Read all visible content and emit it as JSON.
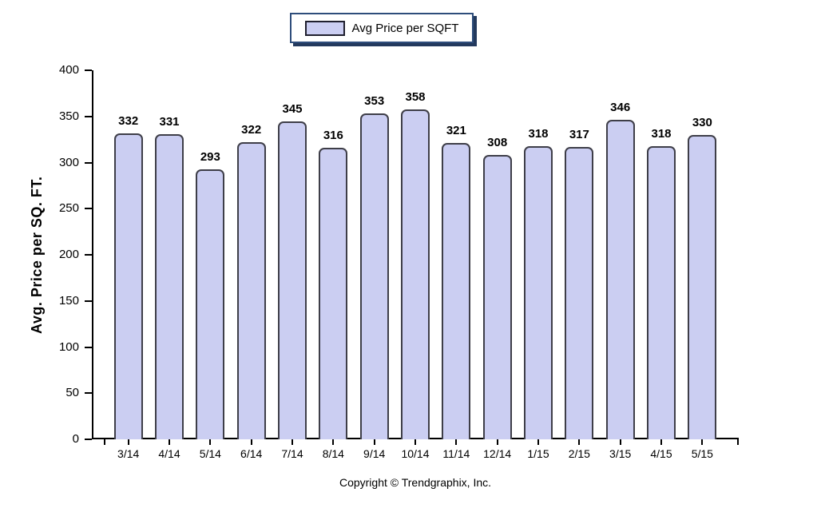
{
  "legend": {
    "label": "Avg Price per SQFT"
  },
  "footer": {
    "copyright": "Copyright © Trendgraphix, Inc."
  },
  "colors": {
    "bar_fill": "#cbcef2",
    "bar_border": "#3e3e48",
    "axis": "#000000",
    "legend_border": "#2e4d7b",
    "legend_shadow": "#23395d",
    "swatch_border": "#1f1f2e",
    "text": "#000000"
  },
  "chart_data": {
    "type": "bar",
    "title": "",
    "categories": [
      "3/14",
      "4/14",
      "5/14",
      "6/14",
      "7/14",
      "8/14",
      "9/14",
      "10/14",
      "11/14",
      "12/14",
      "1/15",
      "2/15",
      "3/15",
      "4/15",
      "5/15"
    ],
    "series": [
      {
        "name": "Avg Price per SQFT",
        "values": [
          332,
          331,
          293,
          322,
          345,
          316,
          353,
          358,
          321,
          308,
          318,
          317,
          346,
          318,
          330
        ]
      }
    ],
    "xlabel": "",
    "ylabel": "Avg. Price per SQ. FT.",
    "ylim": [
      0,
      400
    ],
    "ytick_step": 50,
    "grid": false,
    "legend_position": "top-center",
    "value_labels": true
  }
}
